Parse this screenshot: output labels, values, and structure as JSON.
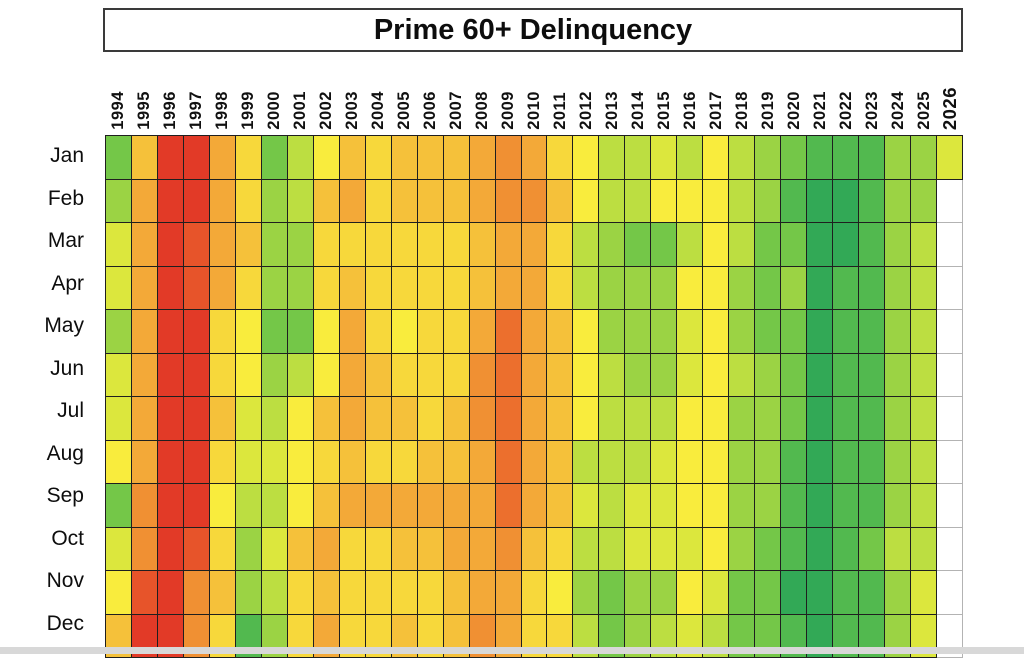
{
  "chart_data": {
    "type": "heatmap",
    "title": "Prime 60+ Delinquency",
    "rows": [
      "Jan",
      "Feb",
      "Mar",
      "Apr",
      "May",
      "Jun",
      "Jul",
      "Aug",
      "Sep",
      "Oct",
      "Nov",
      "Dec"
    ],
    "columns": [
      "1994",
      "1995",
      "1996",
      "1997",
      "1998",
      "1999",
      "2000",
      "2001",
      "2002",
      "2003",
      "2004",
      "2005",
      "2006",
      "2007",
      "2008",
      "2009",
      "2010",
      "2011",
      "2012",
      "2013",
      "2014",
      "2015",
      "2016",
      "2017",
      "2018",
      "2019",
      "2020",
      "2021",
      "2022",
      "2023",
      "2024",
      "2025",
      "2026"
    ],
    "legend_position": "none",
    "grid": "on",
    "palette": {
      "R": "#e23a27",
      "RO": "#e7542a",
      "O3": "#ec6f2d",
      "O2": "#f09033",
      "O1": "#f3a938",
      "YO": "#f5c13a",
      "Y1": "#f7d83b",
      "Y2": "#f9ec3d",
      "GY": "#dce73d",
      "LG": "#bcde41",
      "G3": "#9bd344",
      "G2": "#74c748",
      "G1": "#52b94f",
      "G0": "#32a956"
    },
    "palette_meaning": "red = worst (highest delinquency), dark green = best (lowest delinquency)",
    "cells": [
      [
        "G2",
        "YO",
        "R",
        "R",
        "O1",
        "Y1",
        "G2",
        "LG",
        "Y2",
        "YO",
        "Y1",
        "YO",
        "YO",
        "YO",
        "O1",
        "O2",
        "O1",
        "Y1",
        "Y2",
        "LG",
        "LG",
        "GY",
        "LG",
        "Y2",
        "LG",
        "G3",
        "G2",
        "G1",
        "G1",
        "G1",
        "G3",
        "G3",
        "GY"
      ],
      [
        "G3",
        "O1",
        "R",
        "R",
        "O1",
        "Y1",
        "G3",
        "LG",
        "YO",
        "O1",
        "Y1",
        "YO",
        "YO",
        "YO",
        "O1",
        "O2",
        "O2",
        "YO",
        "Y2",
        "LG",
        "LG",
        "Y2",
        "Y2",
        "Y2",
        "LG",
        "G3",
        "G1",
        "G0",
        "G0",
        "G1",
        "G3",
        "G3",
        null
      ],
      [
        "GY",
        "O1",
        "R",
        "RO",
        "O1",
        "YO",
        "G3",
        "G3",
        "Y1",
        "Y1",
        "Y1",
        "Y1",
        "Y1",
        "Y1",
        "YO",
        "O1",
        "O1",
        "Y1",
        "LG",
        "G3",
        "G2",
        "G2",
        "LG",
        "Y2",
        "LG",
        "G2",
        "G2",
        "G0",
        "G0",
        "G1",
        "G3",
        "LG",
        null
      ],
      [
        "GY",
        "O1",
        "R",
        "RO",
        "O1",
        "Y1",
        "G3",
        "G3",
        "Y1",
        "YO",
        "Y1",
        "Y1",
        "Y1",
        "Y1",
        "YO",
        "O1",
        "O1",
        "Y1",
        "LG",
        "G3",
        "G3",
        "G3",
        "Y2",
        "Y2",
        "G3",
        "G2",
        "G3",
        "G0",
        "G1",
        "G1",
        "G3",
        "LG",
        null
      ],
      [
        "G3",
        "O1",
        "R",
        "R",
        "Y1",
        "Y2",
        "G2",
        "G2",
        "Y2",
        "O1",
        "Y1",
        "Y2",
        "Y1",
        "Y1",
        "O1",
        "O3",
        "O1",
        "YO",
        "Y2",
        "G3",
        "G3",
        "G3",
        "GY",
        "Y2",
        "G3",
        "G2",
        "G2",
        "G0",
        "G1",
        "G1",
        "G3",
        "LG",
        null
      ],
      [
        "GY",
        "O1",
        "R",
        "R",
        "Y1",
        "Y2",
        "G3",
        "LG",
        "Y2",
        "O1",
        "YO",
        "Y1",
        "Y1",
        "Y1",
        "O2",
        "O3",
        "O1",
        "YO",
        "Y2",
        "LG",
        "G3",
        "G3",
        "GY",
        "Y2",
        "LG",
        "G3",
        "G2",
        "G0",
        "G1",
        "G1",
        "G3",
        "LG",
        null
      ],
      [
        "GY",
        "O1",
        "R",
        "R",
        "YO",
        "GY",
        "LG",
        "Y2",
        "YO",
        "O1",
        "YO",
        "YO",
        "Y1",
        "YO",
        "O2",
        "O3",
        "O1",
        "YO",
        "Y2",
        "LG",
        "LG",
        "LG",
        "Y2",
        "Y2",
        "G3",
        "G3",
        "G2",
        "G0",
        "G1",
        "G1",
        "G3",
        "LG",
        null
      ],
      [
        "Y2",
        "O1",
        "R",
        "R",
        "Y1",
        "GY",
        "GY",
        "Y2",
        "Y1",
        "YO",
        "Y1",
        "Y1",
        "YO",
        "YO",
        "O1",
        "O3",
        "O1",
        "YO",
        "LG",
        "LG",
        "LG",
        "GY",
        "Y2",
        "Y2",
        "G3",
        "G3",
        "G1",
        "G0",
        "G1",
        "G1",
        "G3",
        "LG",
        null
      ],
      [
        "G2",
        "O2",
        "R",
        "R",
        "Y2",
        "LG",
        "LG",
        "Y2",
        "YO",
        "O1",
        "O1",
        "O1",
        "O1",
        "O1",
        "O1",
        "O3",
        "O1",
        "YO",
        "GY",
        "LG",
        "GY",
        "GY",
        "Y2",
        "Y2",
        "G3",
        "G3",
        "G1",
        "G0",
        "G1",
        "G1",
        "G3",
        "LG",
        null
      ],
      [
        "GY",
        "O2",
        "R",
        "RO",
        "Y1",
        "G3",
        "GY",
        "YO",
        "O1",
        "Y1",
        "Y1",
        "YO",
        "YO",
        "O1",
        "O1",
        "O2",
        "YO",
        "Y1",
        "LG",
        "LG",
        "GY",
        "GY",
        "GY",
        "Y2",
        "G3",
        "G2",
        "G1",
        "G0",
        "G1",
        "G2",
        "LG",
        "LG",
        null
      ],
      [
        "Y2",
        "RO",
        "R",
        "O2",
        "YO",
        "G3",
        "LG",
        "Y1",
        "YO",
        "Y1",
        "Y1",
        "Y1",
        "Y1",
        "YO",
        "O1",
        "O1",
        "Y1",
        "Y2",
        "G3",
        "G2",
        "G3",
        "G3",
        "Y2",
        "GY",
        "G2",
        "G2",
        "G0",
        "G0",
        "G1",
        "G1",
        "G3",
        "GY",
        null
      ],
      [
        "YO",
        "R",
        "R",
        "O2",
        "Y1",
        "G1",
        "G3",
        "Y1",
        "O1",
        "Y1",
        "Y1",
        "YO",
        "Y1",
        "YO",
        "O2",
        "O1",
        "Y1",
        "Y1",
        "LG",
        "G2",
        "G3",
        "LG",
        "GY",
        "LG",
        "G2",
        "G2",
        "G1",
        "G0",
        "G1",
        "G1",
        "G3",
        "GY",
        null
      ]
    ]
  }
}
